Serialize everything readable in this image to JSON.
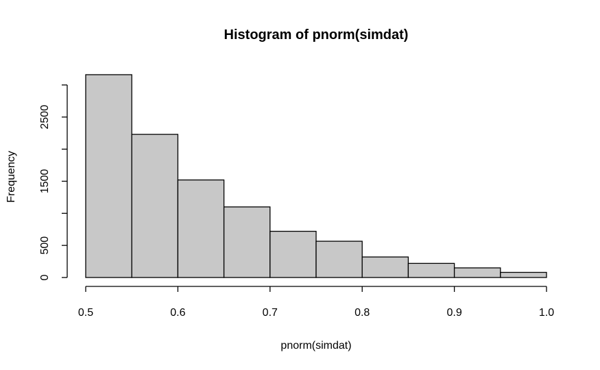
{
  "chart_data": {
    "type": "bar",
    "title": "Histogram of pnorm(simdat)",
    "xlabel": "pnorm(simdat)",
    "ylabel": "Frequency",
    "bins": [
      {
        "x0": 0.5,
        "x1": 0.55,
        "count": 3160
      },
      {
        "x0": 0.55,
        "x1": 0.6,
        "count": 2230
      },
      {
        "x0": 0.6,
        "x1": 0.65,
        "count": 1520
      },
      {
        "x0": 0.65,
        "x1": 0.7,
        "count": 1100
      },
      {
        "x0": 0.7,
        "x1": 0.75,
        "count": 720
      },
      {
        "x0": 0.75,
        "x1": 0.8,
        "count": 565
      },
      {
        "x0": 0.8,
        "x1": 0.85,
        "count": 320
      },
      {
        "x0": 0.85,
        "x1": 0.9,
        "count": 220
      },
      {
        "x0": 0.9,
        "x1": 0.95,
        "count": 150
      },
      {
        "x0": 0.95,
        "x1": 1.0,
        "count": 80
      }
    ],
    "xlim": [
      0.5,
      1.0
    ],
    "ylim": [
      0,
      3160
    ],
    "x_ticks": [
      0.5,
      0.6,
      0.7,
      0.8,
      0.9,
      1.0
    ],
    "x_tick_labels": [
      "0.5",
      "0.6",
      "0.7",
      "0.8",
      "0.9",
      "1.0"
    ],
    "y_ticks": [
      0,
      500,
      1000,
      1500,
      2000,
      2500,
      3000
    ],
    "y_tick_labels": [
      "0",
      "500",
      "",
      "1500",
      "",
      "2500",
      ""
    ],
    "bar_color": "#c8c8c8",
    "grid": false
  }
}
